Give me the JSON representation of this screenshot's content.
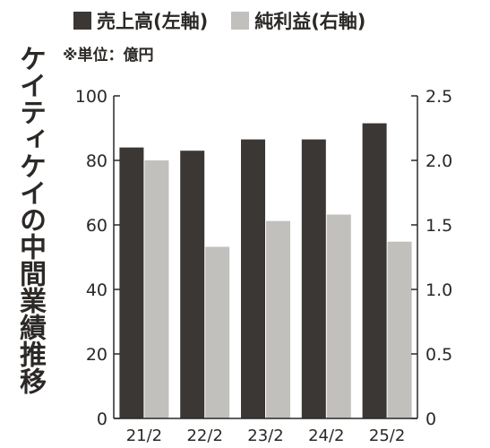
{
  "chart_data": {
    "type": "bar",
    "title": "ケイティケイの中間業績推移",
    "unit_note": "※単位：億円",
    "categories": [
      "21/2",
      "22/2",
      "23/2",
      "24/2",
      "25/2"
    ],
    "series": [
      {
        "name": "売上高(左軸)",
        "axis": "left",
        "color": "#3a3734",
        "values": [
          84,
          83,
          86.5,
          86.5,
          91.5
        ]
      },
      {
        "name": "純利益(右軸)",
        "axis": "right",
        "color": "#c2c0bd",
        "values": [
          2.0,
          1.33,
          1.53,
          1.58,
          1.37
        ]
      }
    ],
    "y_left": {
      "min": 0,
      "max": 100,
      "ticks": [
        "0",
        "20",
        "40",
        "60",
        "80",
        "100"
      ]
    },
    "y_right": {
      "min": 0,
      "max": 2.5,
      "ticks": [
        "0",
        "0.5",
        "1.0",
        "1.5",
        "2.0",
        "2.5"
      ]
    },
    "grid": false,
    "legend_position": "top"
  }
}
